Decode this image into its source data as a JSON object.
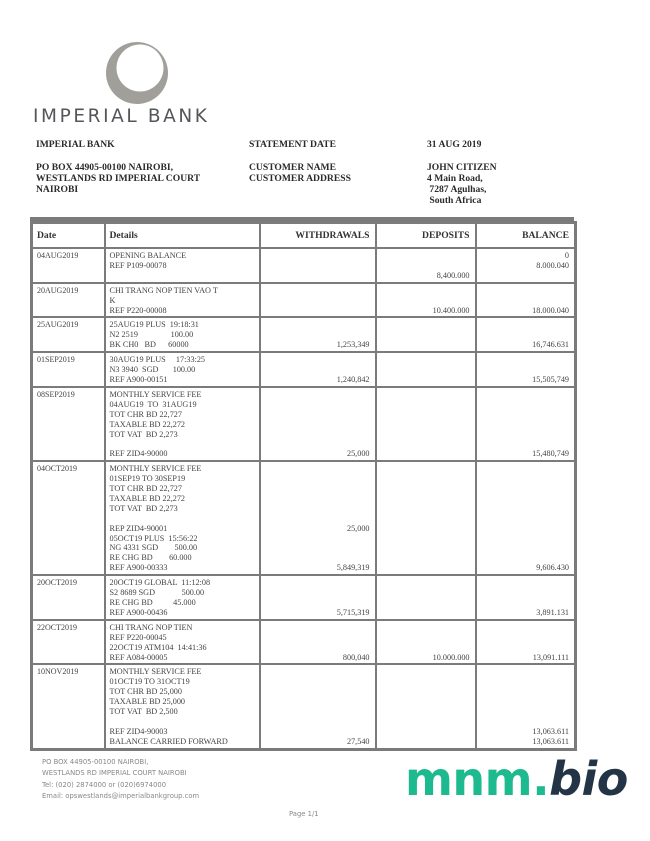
{
  "logo": {
    "text": "IMPERIAL BANK",
    "color": "#a19f99"
  },
  "bank": {
    "name": "IMPERIAL BANK",
    "address": [
      "PO BOX 44905-00100 NAIROBI,",
      "WESTLANDS RD IMPERIAL COURT",
      "NAIROBI"
    ]
  },
  "labels": {
    "statement_date": "STATEMENT DATE",
    "customer_name": "CUSTOMER NAME",
    "customer_address": "CUSTOMER ADDRESS"
  },
  "values": {
    "statement_date": "31 AUG 2019",
    "customer_name": "JOHN CITIZEN",
    "customer_address": [
      "4 Main Road,",
      " 7287 Agulhas,",
      " South Africa"
    ]
  },
  "table": {
    "headers": [
      "Date",
      "Details",
      "WITHDRAWALS",
      "DEPOSITS",
      "BALANCE"
    ],
    "rows": [
      {
        "date": "04AUG2019",
        "details": [
          "OPENING BALANCE",
          "REF P109-00078",
          ""
        ],
        "withdrawals": [
          "",
          "",
          ""
        ],
        "deposits": [
          "",
          "",
          "8,400.000"
        ],
        "balance": [
          "0",
          "8.000.040",
          ""
        ]
      },
      {
        "date": "20AUG2019",
        "details": [
          "CHI TRANG NOP TIEN VAO T",
          "K",
          "REF P220-00008"
        ],
        "withdrawals": [
          "",
          "",
          ""
        ],
        "deposits": [
          "",
          "",
          "10.400.000"
        ],
        "balance": [
          "",
          "",
          "18.000.040"
        ]
      },
      {
        "date": "25AUG2019",
        "details": [
          "25AUG19 PLUS  19:18:31",
          "N2 2519                100.00",
          "BK CH0   BD      60000"
        ],
        "withdrawals": [
          "",
          "",
          "1,253,349"
        ],
        "deposits": [
          "",
          "",
          ""
        ],
        "balance": [
          "",
          "",
          "16,746.631"
        ]
      },
      {
        "date": "01SEP2019",
        "details": [
          "30AUG19 PLUS     17:33:25",
          "N3 3940  SGD       100.00",
          "REF A900-00151"
        ],
        "withdrawals": [
          "",
          "",
          "1,240,842"
        ],
        "deposits": [
          "",
          "",
          ""
        ],
        "balance": [
          "",
          "",
          "15,505,749"
        ]
      },
      {
        "date": "08SEP2019",
        "details": [
          "MONTHLY SERVICE FEE",
          "04AUG19  TO  31AUG19",
          "TOT CHR BD 22,727",
          "TAXABLE BD 22,272",
          "TOT VAT  BD 2,273",
          "",
          "REF ZID4-90000"
        ],
        "withdrawals": [
          "",
          "",
          "",
          "",
          "",
          "",
          "25,000"
        ],
        "deposits": [
          "",
          "",
          "",
          "",
          "",
          "",
          ""
        ],
        "balance": [
          "",
          "",
          "",
          "",
          "",
          "",
          "15,480,749"
        ]
      },
      {
        "date": "04OCT2019",
        "details": [
          "MONTHLY SERVICE FEE",
          "01SEP19 TO 30SEP19",
          "TOT CHR BD 22,727",
          "TAXABLE BD 22,272",
          "TOT VAT  BD 2,273",
          "",
          "REP ZID4-90001",
          "05OCT19 PLUS  15:56:22",
          "NG 4331 SGD        500.00",
          "RE CHG BD        60.000",
          "REF A900-00333"
        ],
        "withdrawals": [
          "",
          "",
          "",
          "",
          "",
          "",
          "25,000",
          "",
          "",
          "",
          "5,849,319"
        ],
        "deposits": [
          "",
          "",
          "",
          "",
          "",
          "",
          "",
          "",
          "",
          "",
          ""
        ],
        "balance": [
          "",
          "",
          "",
          "",
          "",
          "",
          "",
          "",
          "",
          "",
          "9,606.430"
        ]
      },
      {
        "date": "20OCT2019",
        "details": [
          "20OCT19 GLOBAL  11:12:08",
          "S2 8689 SGD             500.00",
          "RE CHG BD          45.000",
          "REF A900-00436"
        ],
        "withdrawals": [
          "",
          "",
          "",
          "5,715,319"
        ],
        "deposits": [
          "",
          "",
          "",
          ""
        ],
        "balance": [
          "",
          "",
          "",
          "3,891.131"
        ]
      },
      {
        "date": "22OCT2019",
        "details": [
          "CHI TRANG NOP TIEN",
          "REF P220-00045",
          "22OCT19 ATM104  14:41:36",
          "REF A084-00005"
        ],
        "withdrawals": [
          "",
          "",
          "",
          "800,040"
        ],
        "deposits": [
          "",
          "",
          "",
          "10.000.000"
        ],
        "balance": [
          "",
          "",
          "",
          "13,091.111"
        ]
      },
      {
        "date": "10NOV2019",
        "details": [
          "MONTHLY SERVICE FEE",
          "01OCT19 TO 31OCT19",
          "TOT CHR BD 25,000",
          "TAXABLE BD 25,000",
          "TOT VAT  BD 2,500",
          "",
          "REF ZID4-90003",
          "BALANCE CARRIED FORWARD"
        ],
        "withdrawals": [
          "",
          "",
          "",
          "",
          "",
          "",
          "",
          "27,540"
        ],
        "deposits": [
          "",
          "",
          "",
          "",
          "",
          "",
          "",
          ""
        ],
        "balance": [
          "",
          "",
          "",
          "",
          "",
          "",
          "13,063.611",
          "13,063.611"
        ]
      }
    ]
  },
  "footer": {
    "lines": [
      "PO BOX 44905-00100 NAIROBI,",
      "WESTLANDS RD IMPERIAL COURT NAIROBI",
      "Tel: (020) 2874000 or (020)6974000",
      "Email: opswestlands@imperialbankgroup.com"
    ],
    "page": "Page 1/1"
  },
  "watermark": {
    "part1": "mnm.",
    "part2": "bio",
    "color1": "#1db98f",
    "color2": "#243447"
  }
}
